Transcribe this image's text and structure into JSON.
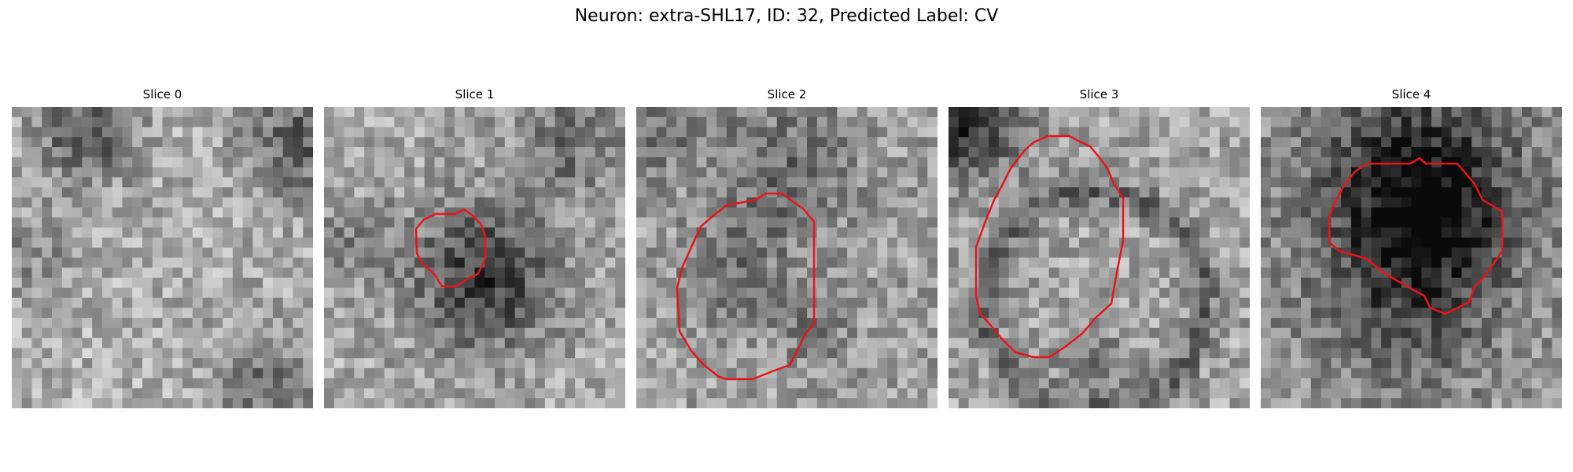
{
  "figure": {
    "title": "Neuron: extra-SHL17, ID: 32, Predicted Label: CV"
  },
  "panels": [
    {
      "title": "Slice 0"
    },
    {
      "title": "Slice 1"
    },
    {
      "title": "Slice 2"
    },
    {
      "title": "Slice 3"
    },
    {
      "title": "Slice 4"
    }
  ],
  "colors": {
    "contour": "#e8141c",
    "background": "#ffffff"
  }
}
